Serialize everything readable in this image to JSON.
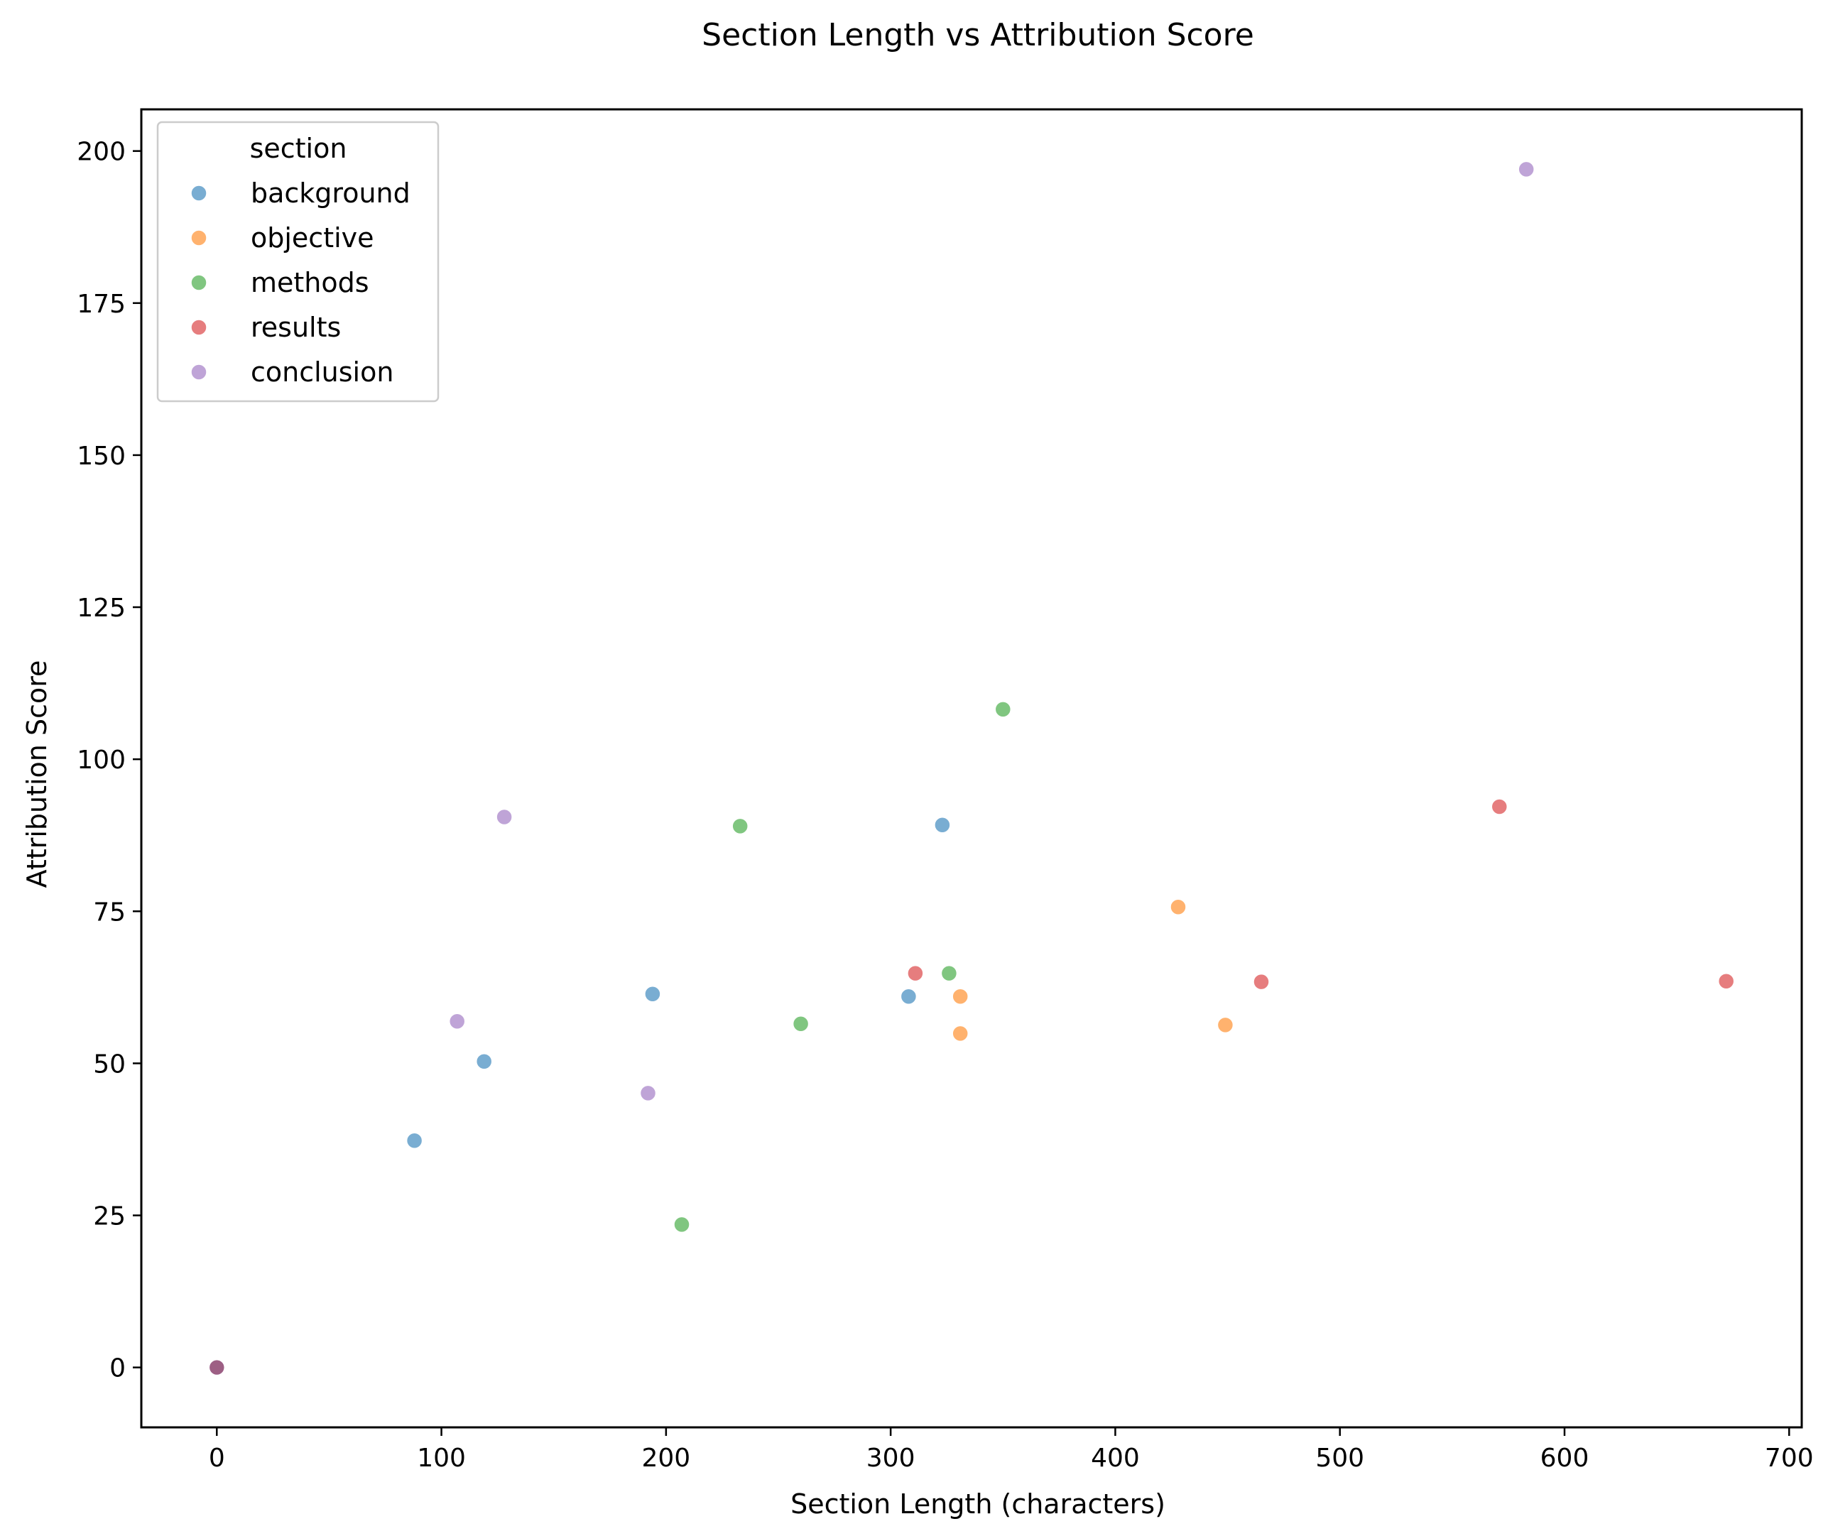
{
  "chart_data": {
    "type": "scatter",
    "title": "Section Length vs Attribution Score",
    "xlabel": "Section Length (characters)",
    "ylabel": "Attribution Score",
    "xlim": [
      -33.6,
      705.6
    ],
    "ylim": [
      -9.85,
      206.85
    ],
    "xticks": [
      0,
      100,
      200,
      300,
      400,
      500,
      600,
      700
    ],
    "yticks": [
      0,
      25,
      50,
      75,
      100,
      125,
      150,
      175,
      200
    ],
    "grid": false,
    "legend": {
      "title": "section",
      "placement": "upper left"
    },
    "series": [
      {
        "name": "background",
        "color": "#1f77b4",
        "points": [
          [
            0,
            0
          ],
          [
            88,
            37.3
          ],
          [
            119,
            50.3
          ],
          [
            194,
            61.4
          ],
          [
            308,
            61.0
          ],
          [
            323,
            89.2
          ]
        ]
      },
      {
        "name": "objective",
        "color": "#ff7f0e",
        "points": [
          [
            0,
            0
          ],
          [
            331,
            61.0
          ],
          [
            331,
            54.9
          ],
          [
            428,
            75.7
          ],
          [
            449,
            56.3
          ]
        ]
      },
      {
        "name": "methods",
        "color": "#2ca02c",
        "points": [
          [
            0,
            0
          ],
          [
            207,
            23.5
          ],
          [
            233,
            89.0
          ],
          [
            260,
            56.5
          ],
          [
            326,
            64.8
          ],
          [
            350,
            108.2
          ]
        ]
      },
      {
        "name": "results",
        "color": "#d62728",
        "points": [
          [
            0,
            0
          ],
          [
            311,
            64.8
          ],
          [
            465,
            63.4
          ],
          [
            571,
            92.2
          ],
          [
            672,
            63.5
          ]
        ]
      },
      {
        "name": "conclusion",
        "color": "#9467bd",
        "points": [
          [
            0,
            0
          ],
          [
            107,
            56.9
          ],
          [
            128,
            90.5
          ],
          [
            192,
            45.1
          ],
          [
            583,
            197.0
          ]
        ]
      }
    ]
  }
}
